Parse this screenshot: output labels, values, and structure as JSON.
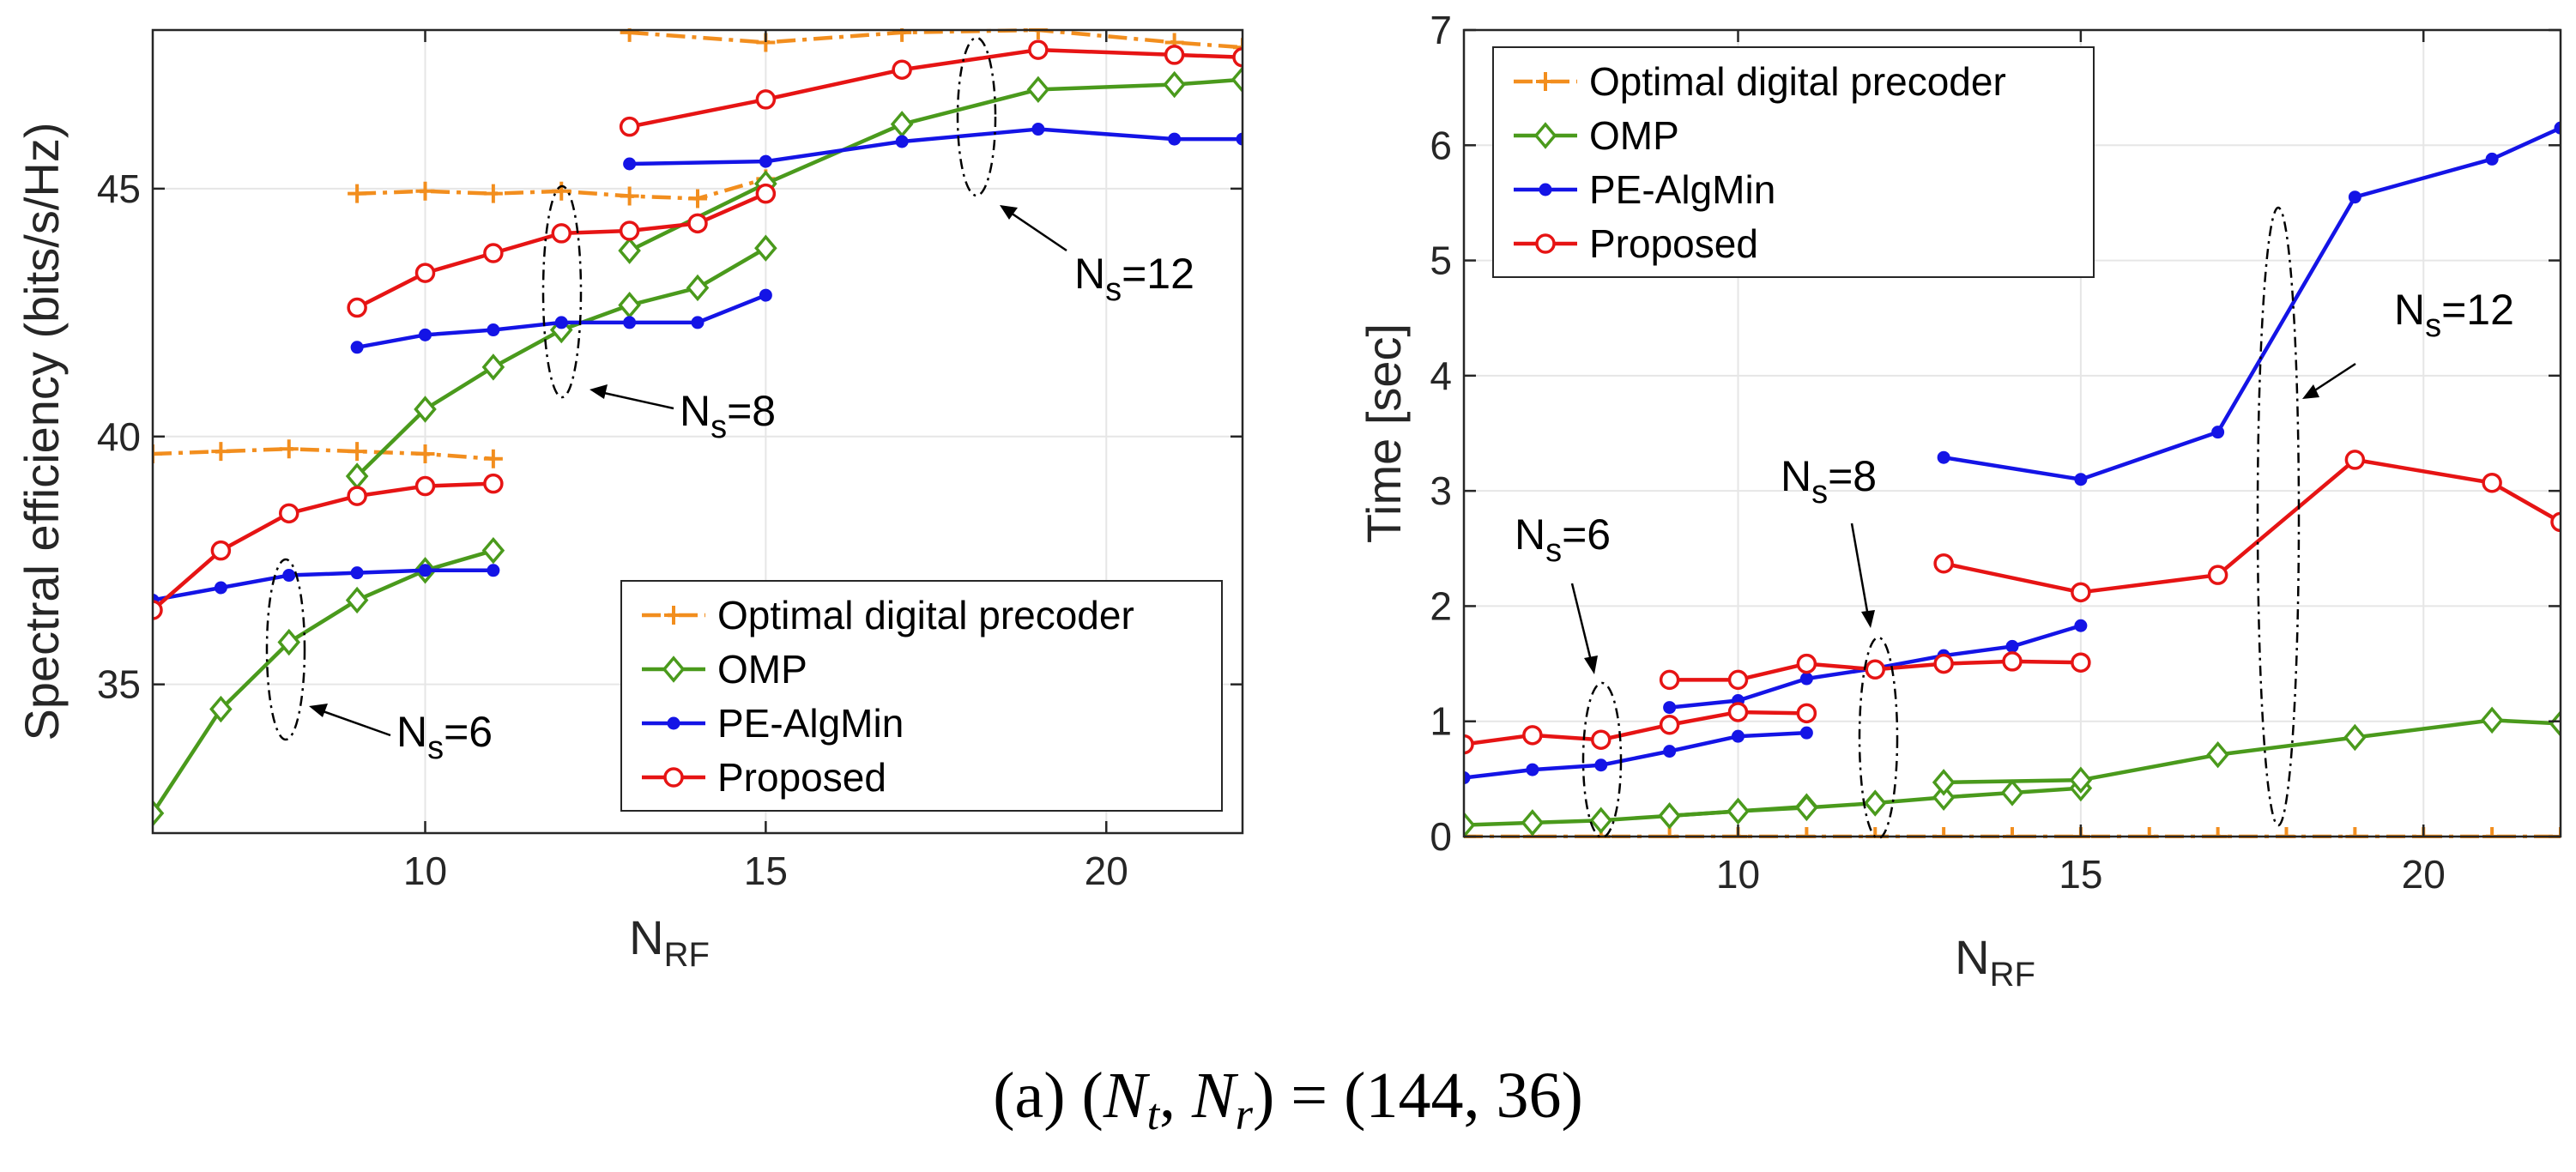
{
  "caption": {
    "prefix": "(a) (",
    "nt": "N",
    "nt_sub": "t",
    "sep": ", ",
    "nr": "N",
    "nr_sub": "r",
    "suffix": ") = (144, 36)"
  },
  "colors": {
    "optimal": "#F28E1E",
    "omp": "#4A9A1C",
    "pe": "#1414E6",
    "proposed": "#E61414",
    "grid": "#E6E6E6",
    "axis": "#262626"
  },
  "chart_data": [
    {
      "type": "line",
      "xlabel": "N",
      "xlabel_sub": "RF",
      "ylabel": "Spectral efficiency (bits/s/Hz)",
      "xlim": [
        6,
        22
      ],
      "ylim": [
        32,
        48.2
      ],
      "xticks": [
        10,
        15,
        20
      ],
      "yticks": [
        35,
        40,
        45
      ],
      "grid": true,
      "legend": {
        "position": "bottom-right",
        "entries": [
          "Optimal digital precoder",
          "OMP",
          "PE-AlgMin",
          "Proposed"
        ]
      },
      "annotations": [
        {
          "text": "N",
          "sub": "s",
          "suffix": "=6"
        },
        {
          "text": "N",
          "sub": "s",
          "suffix": "=8"
        },
        {
          "text": "N",
          "sub": "s",
          "suffix": "=12"
        }
      ],
      "series": [
        {
          "name": "Optimal digital precoder",
          "key": "optimal",
          "marker": "plus",
          "dash": true,
          "segments": [
            {
              "x": [
                6,
                7,
                8,
                9,
                10,
                11
              ],
              "y": [
                39.65,
                39.7,
                39.75,
                39.7,
                39.65,
                39.55
              ]
            },
            {
              "x": [
                9,
                10,
                11,
                12,
                13,
                14,
                15
              ],
              "y": [
                44.9,
                44.95,
                44.9,
                44.95,
                44.85,
                44.8,
                45.2
              ]
            },
            {
              "x": [
                13,
                15,
                17,
                19,
                21,
                22
              ],
              "y": [
                48.15,
                47.95,
                48.15,
                48.2,
                47.95,
                47.85
              ]
            }
          ]
        },
        {
          "name": "OMP",
          "key": "omp",
          "marker": "diamond",
          "dash": false,
          "segments": [
            {
              "x": [
                6,
                7,
                8,
                9,
                10,
                11
              ],
              "y": [
                32.4,
                34.5,
                35.85,
                36.7,
                37.3,
                37.7
              ]
            },
            {
              "x": [
                9,
                10,
                11,
                12,
                13,
                14,
                15
              ],
              "y": [
                39.2,
                40.55,
                41.4,
                42.15,
                42.65,
                43.0,
                43.8
              ]
            },
            {
              "x": [
                13,
                15,
                17,
                19,
                21,
                22
              ],
              "y": [
                43.75,
                45.1,
                46.3,
                47.0,
                47.1,
                47.2
              ]
            }
          ]
        },
        {
          "name": "PE-AlgMin",
          "key": "pe",
          "marker": "dot",
          "dash": false,
          "segments": [
            {
              "x": [
                6,
                7,
                8,
                9,
                10,
                11
              ],
              "y": [
                36.7,
                36.95,
                37.2,
                37.25,
                37.3,
                37.3
              ]
            },
            {
              "x": [
                9,
                10,
                11,
                12,
                13,
                14,
                15
              ],
              "y": [
                41.8,
                42.05,
                42.15,
                42.3,
                42.3,
                42.3,
                42.85
              ]
            },
            {
              "x": [
                13,
                15,
                17,
                19,
                21,
                22
              ],
              "y": [
                45.5,
                45.55,
                45.95,
                46.2,
                46.0,
                46.0
              ]
            }
          ]
        },
        {
          "name": "Proposed",
          "key": "proposed",
          "marker": "circle",
          "dash": false,
          "segments": [
            {
              "x": [
                6,
                7,
                8,
                9,
                10,
                11
              ],
              "y": [
                36.5,
                37.7,
                38.45,
                38.8,
                39.0,
                39.05
              ]
            },
            {
              "x": [
                9,
                10,
                11,
                12,
                13,
                14,
                15
              ],
              "y": [
                42.6,
                43.3,
                43.7,
                44.1,
                44.15,
                44.3,
                44.9
              ]
            },
            {
              "x": [
                13,
                15,
                17,
                19,
                21,
                22
              ],
              "y": [
                46.25,
                46.8,
                47.4,
                47.8,
                47.7,
                47.65
              ]
            }
          ]
        }
      ]
    },
    {
      "type": "line",
      "xlabel": "N",
      "xlabel_sub": "RF",
      "ylabel": "Time [sec]",
      "xlim": [
        6,
        22
      ],
      "ylim": [
        0,
        7
      ],
      "xticks": [
        10,
        15,
        20
      ],
      "yticks": [
        0,
        1,
        2,
        3,
        4,
        5,
        6,
        7
      ],
      "grid": true,
      "legend": {
        "position": "top-left",
        "entries": [
          "Optimal digital precoder",
          "OMP",
          "PE-AlgMin",
          "Proposed"
        ]
      },
      "annotations": [
        {
          "text": "N",
          "sub": "s",
          "suffix": "=6"
        },
        {
          "text": "N",
          "sub": "s",
          "suffix": "=8"
        },
        {
          "text": "N",
          "sub": "s",
          "suffix": "=12"
        }
      ],
      "series": [
        {
          "name": "Optimal digital precoder",
          "key": "optimal",
          "marker": "plus",
          "dash": true,
          "segments": [
            {
              "x": [
                6,
                7,
                8,
                9,
                10,
                11,
                12,
                13,
                14,
                15,
                16,
                17,
                18,
                19,
                20,
                21,
                22
              ],
              "y": [
                0,
                0,
                0,
                0,
                0,
                0,
                0,
                0,
                0,
                0,
                0,
                0,
                0,
                0,
                0,
                0,
                0
              ]
            }
          ]
        },
        {
          "name": "OMP",
          "key": "omp",
          "marker": "diamond",
          "dash": false,
          "segments": [
            {
              "x": [
                6,
                7,
                8,
                9,
                10,
                11
              ],
              "y": [
                0.1,
                0.12,
                0.14,
                0.18,
                0.22,
                0.26
              ]
            },
            {
              "x": [
                9,
                10,
                11,
                12,
                13,
                14,
                15
              ],
              "y": [
                0.18,
                0.22,
                0.25,
                0.29,
                0.34,
                0.38,
                0.42
              ]
            },
            {
              "x": [
                13,
                15,
                17,
                19,
                21,
                22
              ],
              "y": [
                0.47,
                0.49,
                0.71,
                0.86,
                1.01,
                0.98
              ]
            }
          ]
        },
        {
          "name": "PE-AlgMin",
          "key": "pe",
          "marker": "dot",
          "dash": false,
          "segments": [
            {
              "x": [
                6,
                7,
                8,
                9,
                10,
                11
              ],
              "y": [
                0.51,
                0.58,
                0.62,
                0.74,
                0.87,
                0.9
              ]
            },
            {
              "x": [
                9,
                10,
                11,
                12,
                13,
                14,
                15
              ],
              "y": [
                1.12,
                1.18,
                1.37,
                1.46,
                1.57,
                1.65,
                1.83
              ]
            },
            {
              "x": [
                13,
                15,
                17,
                19,
                21,
                22
              ],
              "y": [
                3.29,
                3.1,
                3.51,
                5.55,
                5.88,
                6.15
              ]
            }
          ]
        },
        {
          "name": "Proposed",
          "key": "proposed",
          "marker": "circle",
          "dash": false,
          "segments": [
            {
              "x": [
                6,
                7,
                8,
                9,
                10,
                11
              ],
              "y": [
                0.8,
                0.88,
                0.84,
                0.97,
                1.08,
                1.07
              ]
            },
            {
              "x": [
                9,
                10,
                11,
                12,
                13,
                14,
                15
              ],
              "y": [
                1.36,
                1.36,
                1.5,
                1.45,
                1.5,
                1.52,
                1.51
              ]
            },
            {
              "x": [
                13,
                15,
                17,
                19,
                21,
                22
              ],
              "y": [
                2.37,
                2.12,
                2.27,
                3.27,
                3.07,
                2.73
              ]
            }
          ]
        }
      ]
    }
  ]
}
